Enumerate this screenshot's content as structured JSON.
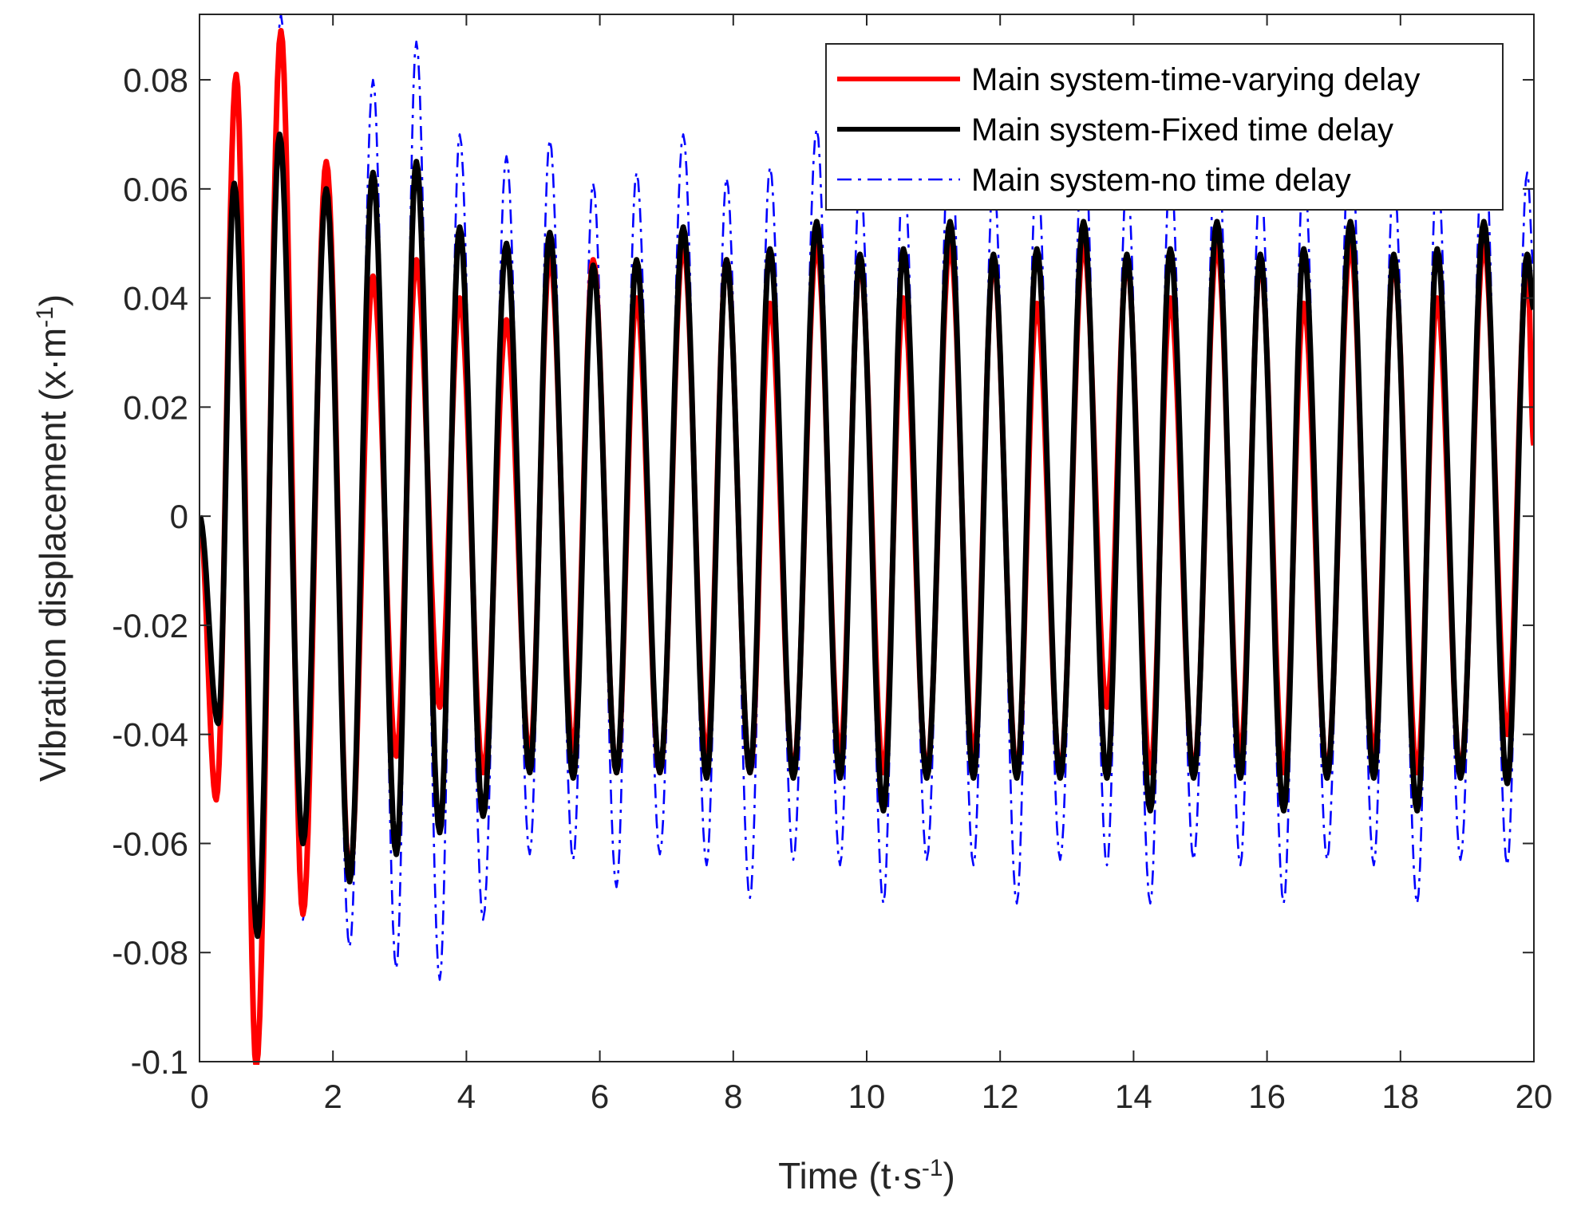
{
  "chart_data": {
    "type": "line",
    "title": "",
    "xlabel": {
      "base": "Time (t·s",
      "sup": "-1",
      "close": ")"
    },
    "ylabel": {
      "base": "Vibration displacement (x·m",
      "sup": "-1",
      "close": ")"
    },
    "xlim": [
      0,
      20
    ],
    "ylim": [
      -0.1,
      0.092
    ],
    "x_ticks": [
      0,
      2,
      4,
      6,
      8,
      10,
      12,
      14,
      16,
      18,
      20
    ],
    "x_tick_labels": [
      "0",
      "2",
      "4",
      "6",
      "8",
      "10",
      "12",
      "14",
      "16",
      "18",
      "20"
    ],
    "y_ticks": [
      -0.1,
      -0.08,
      -0.06,
      -0.04,
      -0.02,
      0,
      0.02,
      0.04,
      0.06,
      0.08
    ],
    "y_tick_labels": [
      "-0.1",
      "-0.08",
      "-0.06",
      "-0.04",
      "-0.02",
      "0",
      "0.02",
      "0.04",
      "0.06",
      "0.08"
    ],
    "grid": false,
    "legend_position": "top-right",
    "series": [
      {
        "name": "Main system-time-varying delay",
        "color": "#ff0000",
        "style": "solid",
        "extrema": [
          {
            "x": 0.0,
            "y": 0.0
          },
          {
            "x": 0.25,
            "y": -0.052
          },
          {
            "x": 0.55,
            "y": 0.081
          },
          {
            "x": 0.85,
            "y": -0.101
          },
          {
            "x": 1.22,
            "y": 0.089
          },
          {
            "x": 1.55,
            "y": -0.073
          },
          {
            "x": 1.9,
            "y": 0.065
          },
          {
            "x": 2.25,
            "y": -0.066
          },
          {
            "x": 2.6,
            "y": 0.044
          },
          {
            "x": 2.95,
            "y": -0.044
          },
          {
            "x": 3.25,
            "y": 0.047
          },
          {
            "x": 3.6,
            "y": -0.035
          },
          {
            "x": 3.9,
            "y": 0.04
          },
          {
            "x": 4.25,
            "y": -0.047
          },
          {
            "x": 4.6,
            "y": 0.036
          },
          {
            "x": 4.95,
            "y": -0.044
          },
          {
            "x": 5.25,
            "y": 0.048
          },
          {
            "x": 5.6,
            "y": -0.043
          },
          {
            "x": 5.9,
            "y": 0.047
          },
          {
            "x": 6.25,
            "y": -0.047
          },
          {
            "x": 6.55,
            "y": 0.04
          },
          {
            "x": 6.9,
            "y": -0.047
          },
          {
            "x": 7.25,
            "y": 0.05
          },
          {
            "x": 7.6,
            "y": -0.044
          },
          {
            "x": 7.9,
            "y": 0.047
          },
          {
            "x": 8.25,
            "y": -0.047
          },
          {
            "x": 8.55,
            "y": 0.039
          },
          {
            "x": 8.9,
            "y": -0.047
          },
          {
            "x": 9.25,
            "y": 0.05
          },
          {
            "x": 9.6,
            "y": -0.044
          },
          {
            "x": 9.9,
            "y": 0.047
          },
          {
            "x": 10.25,
            "y": -0.047
          },
          {
            "x": 10.55,
            "y": 0.04
          },
          {
            "x": 10.9,
            "y": -0.047
          },
          {
            "x": 11.25,
            "y": 0.05
          },
          {
            "x": 11.6,
            "y": -0.044
          },
          {
            "x": 11.9,
            "y": 0.047
          },
          {
            "x": 12.25,
            "y": -0.047
          },
          {
            "x": 12.55,
            "y": 0.039
          },
          {
            "x": 12.9,
            "y": -0.047
          },
          {
            "x": 13.25,
            "y": 0.05
          },
          {
            "x": 13.6,
            "y": -0.035
          },
          {
            "x": 13.9,
            "y": 0.047
          },
          {
            "x": 14.25,
            "y": -0.047
          },
          {
            "x": 14.55,
            "y": 0.04
          },
          {
            "x": 14.9,
            "y": -0.047
          },
          {
            "x": 15.25,
            "y": 0.05
          },
          {
            "x": 15.6,
            "y": -0.044
          },
          {
            "x": 15.9,
            "y": 0.047
          },
          {
            "x": 16.25,
            "y": -0.047
          },
          {
            "x": 16.55,
            "y": 0.039
          },
          {
            "x": 16.9,
            "y": -0.047
          },
          {
            "x": 17.25,
            "y": 0.05
          },
          {
            "x": 17.6,
            "y": -0.044
          },
          {
            "x": 17.9,
            "y": 0.047
          },
          {
            "x": 18.25,
            "y": -0.047
          },
          {
            "x": 18.55,
            "y": 0.04
          },
          {
            "x": 18.9,
            "y": -0.047
          },
          {
            "x": 19.25,
            "y": 0.05
          },
          {
            "x": 19.6,
            "y": -0.04
          },
          {
            "x": 19.9,
            "y": 0.047
          },
          {
            "x": 20.0,
            "y": 0.013
          }
        ]
      },
      {
        "name": "Main system-Fixed time delay",
        "color": "#000000",
        "style": "solid",
        "extrema": [
          {
            "x": 0.0,
            "y": 0.0
          },
          {
            "x": 0.28,
            "y": -0.038
          },
          {
            "x": 0.52,
            "y": 0.061
          },
          {
            "x": 0.87,
            "y": -0.077
          },
          {
            "x": 1.2,
            "y": 0.07
          },
          {
            "x": 1.55,
            "y": -0.06
          },
          {
            "x": 1.9,
            "y": 0.06
          },
          {
            "x": 2.25,
            "y": -0.067
          },
          {
            "x": 2.6,
            "y": 0.063
          },
          {
            "x": 2.95,
            "y": -0.062
          },
          {
            "x": 3.25,
            "y": 0.065
          },
          {
            "x": 3.6,
            "y": -0.058
          },
          {
            "x": 3.9,
            "y": 0.053
          },
          {
            "x": 4.25,
            "y": -0.055
          },
          {
            "x": 4.6,
            "y": 0.05
          },
          {
            "x": 4.95,
            "y": -0.047
          },
          {
            "x": 5.25,
            "y": 0.052
          },
          {
            "x": 5.6,
            "y": -0.048
          },
          {
            "x": 5.9,
            "y": 0.046
          },
          {
            "x": 6.25,
            "y": -0.047
          },
          {
            "x": 6.55,
            "y": 0.047
          },
          {
            "x": 6.9,
            "y": -0.047
          },
          {
            "x": 7.25,
            "y": 0.053
          },
          {
            "x": 7.6,
            "y": -0.048
          },
          {
            "x": 7.9,
            "y": 0.047
          },
          {
            "x": 8.25,
            "y": -0.047
          },
          {
            "x": 8.55,
            "y": 0.049
          },
          {
            "x": 8.9,
            "y": -0.048
          },
          {
            "x": 9.25,
            "y": 0.054
          },
          {
            "x": 9.6,
            "y": -0.048
          },
          {
            "x": 9.9,
            "y": 0.048
          },
          {
            "x": 10.25,
            "y": -0.054
          },
          {
            "x": 10.55,
            "y": 0.049
          },
          {
            "x": 10.9,
            "y": -0.048
          },
          {
            "x": 11.25,
            "y": 0.054
          },
          {
            "x": 11.6,
            "y": -0.048
          },
          {
            "x": 11.9,
            "y": 0.048
          },
          {
            "x": 12.25,
            "y": -0.048
          },
          {
            "x": 12.55,
            "y": 0.049
          },
          {
            "x": 12.9,
            "y": -0.048
          },
          {
            "x": 13.25,
            "y": 0.054
          },
          {
            "x": 13.6,
            "y": -0.048
          },
          {
            "x": 13.9,
            "y": 0.048
          },
          {
            "x": 14.25,
            "y": -0.054
          },
          {
            "x": 14.55,
            "y": 0.049
          },
          {
            "x": 14.9,
            "y": -0.048
          },
          {
            "x": 15.25,
            "y": 0.054
          },
          {
            "x": 15.6,
            "y": -0.048
          },
          {
            "x": 15.9,
            "y": 0.048
          },
          {
            "x": 16.25,
            "y": -0.054
          },
          {
            "x": 16.55,
            "y": 0.049
          },
          {
            "x": 16.9,
            "y": -0.048
          },
          {
            "x": 17.25,
            "y": 0.054
          },
          {
            "x": 17.6,
            "y": -0.048
          },
          {
            "x": 17.9,
            "y": 0.048
          },
          {
            "x": 18.25,
            "y": -0.054
          },
          {
            "x": 18.55,
            "y": 0.049
          },
          {
            "x": 18.9,
            "y": -0.048
          },
          {
            "x": 19.25,
            "y": 0.054
          },
          {
            "x": 19.6,
            "y": -0.049
          },
          {
            "x": 19.9,
            "y": 0.048
          },
          {
            "x": 20.0,
            "y": 0.038
          }
        ]
      },
      {
        "name": "Main system-no time delay",
        "color": "#0000ff",
        "style": "dashdot",
        "extrema": [
          {
            "x": 0.0,
            "y": 0.0
          },
          {
            "x": 0.25,
            "y": -0.052
          },
          {
            "x": 0.55,
            "y": 0.08
          },
          {
            "x": 0.87,
            "y": -0.1
          },
          {
            "x": 1.22,
            "y": 0.092
          },
          {
            "x": 1.55,
            "y": -0.074
          },
          {
            "x": 1.9,
            "y": 0.064
          },
          {
            "x": 2.25,
            "y": -0.079
          },
          {
            "x": 2.6,
            "y": 0.08
          },
          {
            "x": 2.95,
            "y": -0.083
          },
          {
            "x": 3.25,
            "y": 0.087
          },
          {
            "x": 3.6,
            "y": -0.085
          },
          {
            "x": 3.9,
            "y": 0.07
          },
          {
            "x": 4.25,
            "y": -0.074
          },
          {
            "x": 4.6,
            "y": 0.066
          },
          {
            "x": 4.95,
            "y": -0.062
          },
          {
            "x": 5.25,
            "y": 0.069
          },
          {
            "x": 5.6,
            "y": -0.063
          },
          {
            "x": 5.9,
            "y": 0.061
          },
          {
            "x": 6.25,
            "y": -0.068
          },
          {
            "x": 6.55,
            "y": 0.063
          },
          {
            "x": 6.9,
            "y": -0.062
          },
          {
            "x": 7.25,
            "y": 0.07
          },
          {
            "x": 7.6,
            "y": -0.064
          },
          {
            "x": 7.9,
            "y": 0.062
          },
          {
            "x": 8.25,
            "y": -0.07
          },
          {
            "x": 8.55,
            "y": 0.064
          },
          {
            "x": 8.9,
            "y": -0.063
          },
          {
            "x": 9.25,
            "y": 0.071
          },
          {
            "x": 9.6,
            "y": -0.064
          },
          {
            "x": 9.9,
            "y": 0.062
          },
          {
            "x": 10.25,
            "y": -0.071
          },
          {
            "x": 10.55,
            "y": 0.064
          },
          {
            "x": 10.9,
            "y": -0.063
          },
          {
            "x": 11.25,
            "y": 0.071
          },
          {
            "x": 11.6,
            "y": -0.064
          },
          {
            "x": 11.9,
            "y": 0.062
          },
          {
            "x": 12.25,
            "y": -0.071
          },
          {
            "x": 12.55,
            "y": 0.064
          },
          {
            "x": 12.9,
            "y": -0.063
          },
          {
            "x": 13.25,
            "y": 0.071
          },
          {
            "x": 13.6,
            "y": -0.064
          },
          {
            "x": 13.9,
            "y": 0.062
          },
          {
            "x": 14.25,
            "y": -0.071
          },
          {
            "x": 14.55,
            "y": 0.064
          },
          {
            "x": 14.9,
            "y": -0.063
          },
          {
            "x": 15.25,
            "y": 0.071
          },
          {
            "x": 15.6,
            "y": -0.064
          },
          {
            "x": 15.9,
            "y": 0.062
          },
          {
            "x": 16.25,
            "y": -0.071
          },
          {
            "x": 16.55,
            "y": 0.064
          },
          {
            "x": 16.9,
            "y": -0.063
          },
          {
            "x": 17.25,
            "y": 0.071
          },
          {
            "x": 17.6,
            "y": -0.064
          },
          {
            "x": 17.9,
            "y": 0.062
          },
          {
            "x": 18.25,
            "y": -0.071
          },
          {
            "x": 18.55,
            "y": 0.064
          },
          {
            "x": 18.9,
            "y": -0.063
          },
          {
            "x": 19.25,
            "y": 0.071
          },
          {
            "x": 19.6,
            "y": -0.064
          },
          {
            "x": 19.9,
            "y": 0.063
          },
          {
            "x": 20.0,
            "y": 0.045
          }
        ]
      }
    ]
  }
}
